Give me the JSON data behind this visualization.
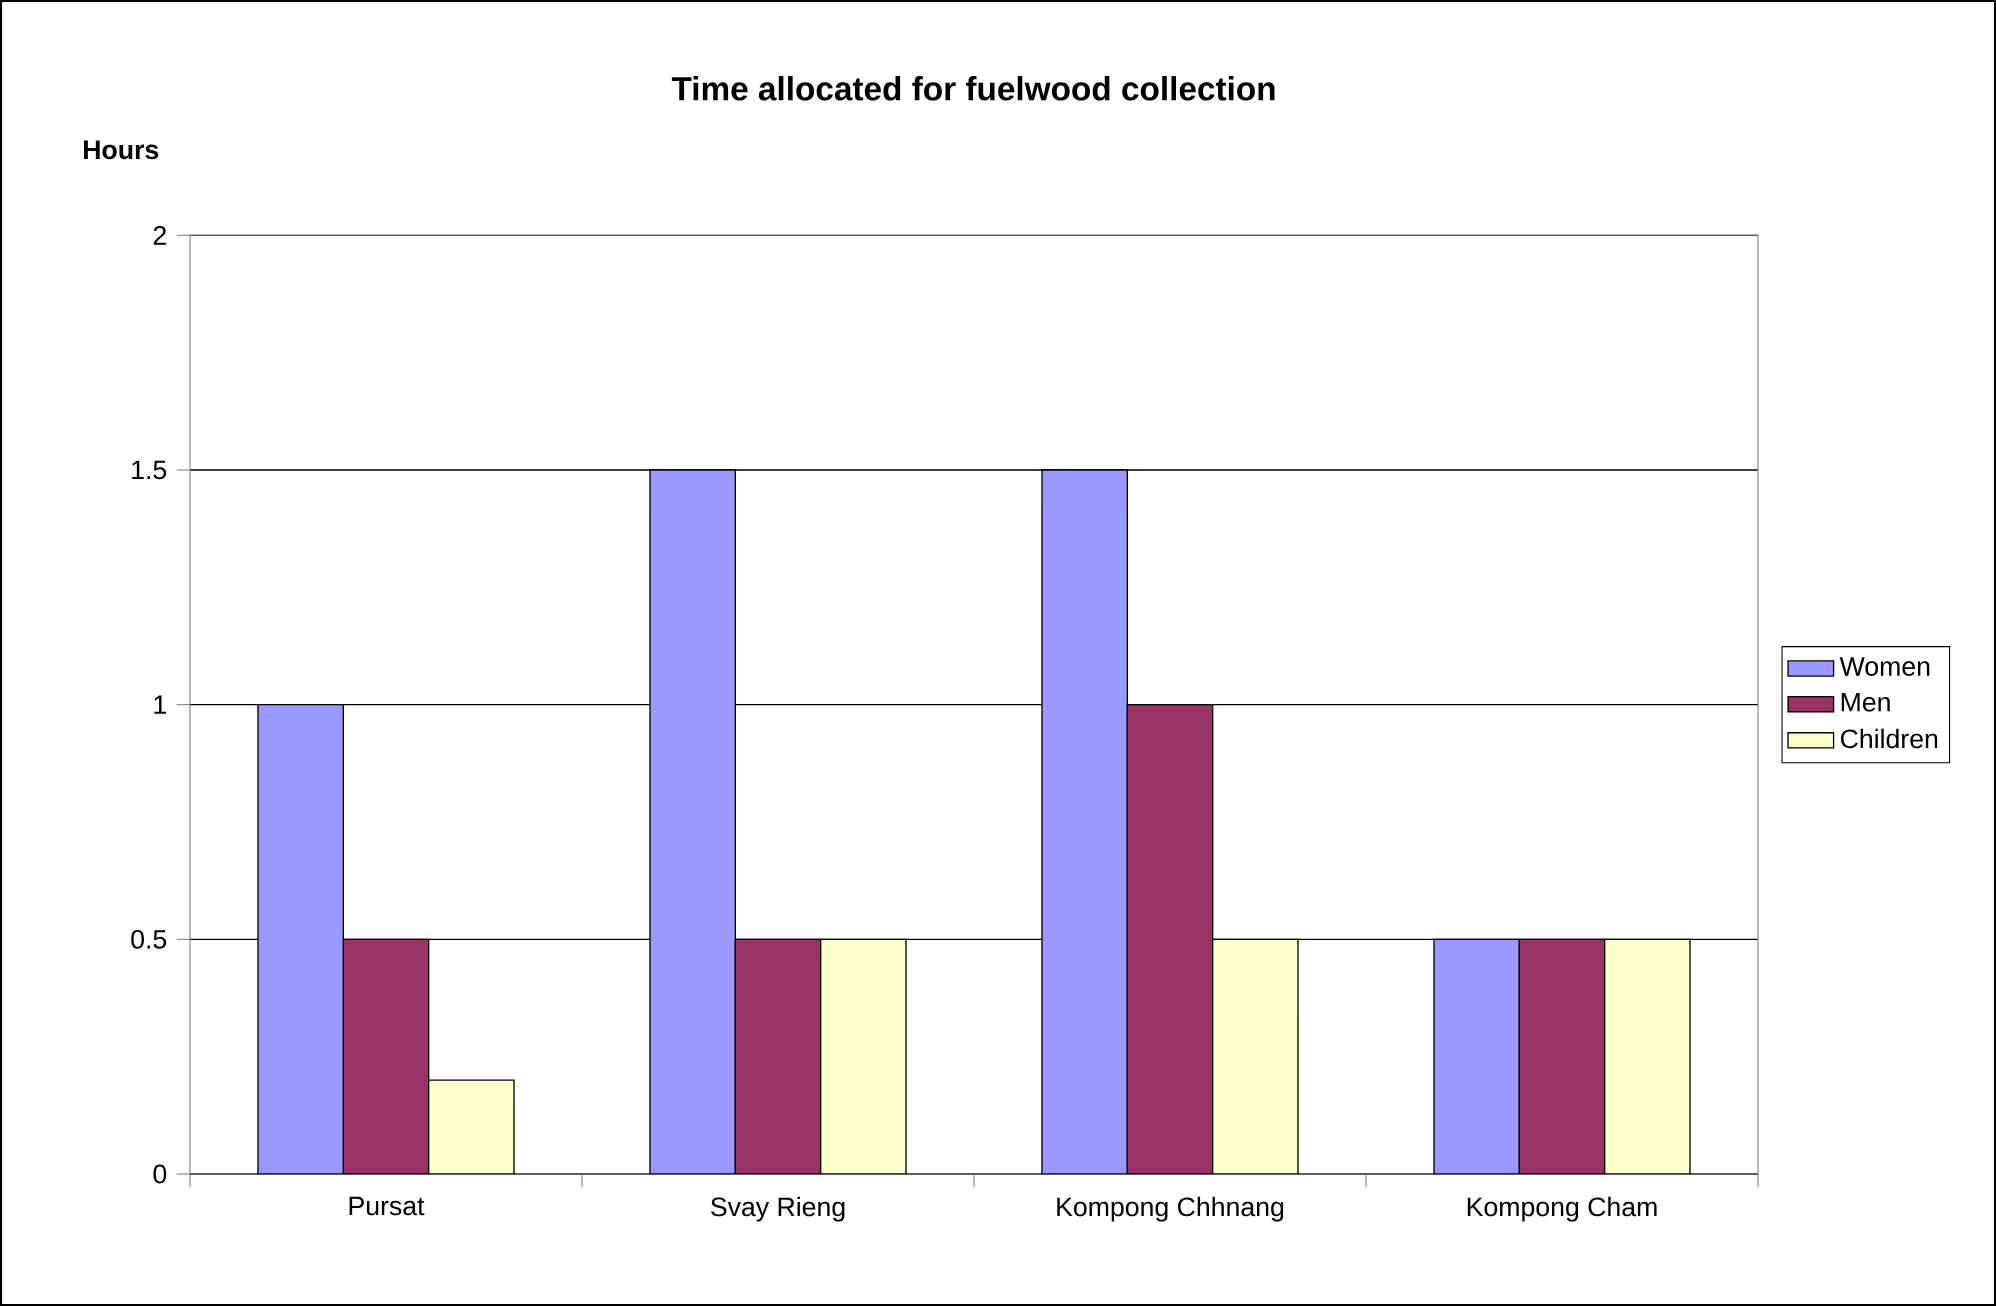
{
  "chart_data": {
    "type": "bar",
    "title": "Time allocated for fuelwood collection",
    "ylabel": "Hours",
    "categories": [
      "Pursat",
      "Svay Rieng",
      "Kompong Chhnang",
      "Kompong Cham"
    ],
    "series": [
      {
        "name": "Women",
        "color": "#9999ff",
        "values": [
          1,
          1.5,
          1.5,
          0.5
        ]
      },
      {
        "name": "Men",
        "color": "#993366",
        "values": [
          0.5,
          0.5,
          1,
          0.5
        ]
      },
      {
        "name": "Children",
        "color": "#ffffcc",
        "values": [
          0.2,
          0.5,
          0.5,
          0.5
        ]
      }
    ],
    "ylim": [
      0,
      2
    ],
    "yticks": [
      0,
      0.5,
      1,
      1.5,
      2
    ],
    "grid": "y",
    "legend": "right"
  }
}
